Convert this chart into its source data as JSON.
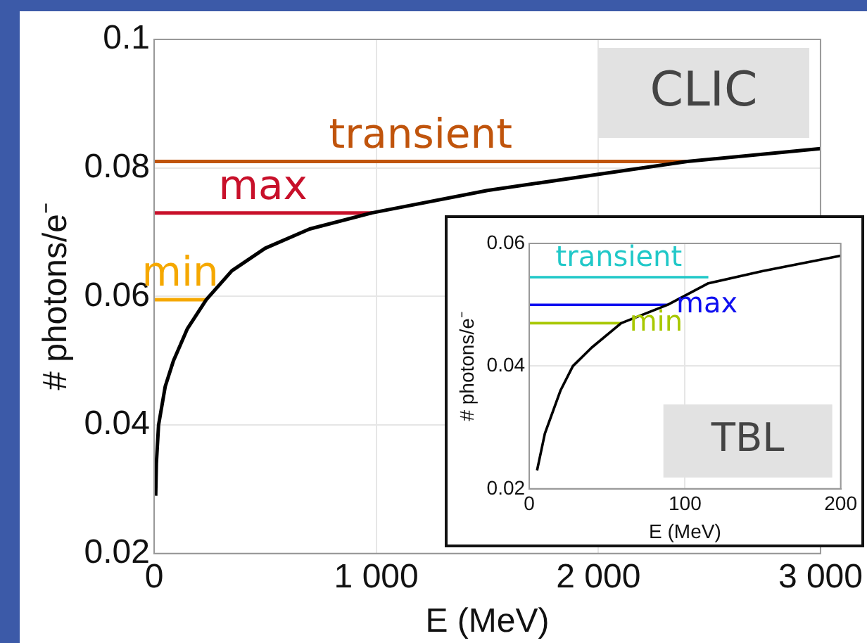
{
  "chart_data": [
    {
      "type": "line",
      "xlabel": "E (MeV)",
      "ylabel": "# photons/e⁻",
      "xlim": [
        0,
        3000
      ],
      "ylim": [
        0.02,
        0.1
      ],
      "xticks": [
        0,
        {
          "value": 1000,
          "label": "1 000"
        },
        {
          "value": 2000,
          "label": "2 000"
        },
        {
          "value": 3000,
          "label": "3 000"
        }
      ],
      "yticks": [
        0.02,
        0.04,
        0.06,
        0.08,
        0.1
      ],
      "grid": true,
      "legend": false,
      "marker": "none",
      "line_style": "solid",
      "annotations": [
        "CLIC"
      ],
      "series": [
        {
          "color": "#000000",
          "x": [
            7,
            10,
            20,
            50,
            87,
            150,
            235,
            350,
            500,
            700,
            980,
            1500,
            2000,
            2400,
            3000
          ],
          "values": [
            0.029,
            0.034,
            0.04,
            0.046,
            0.05,
            0.055,
            0.0595,
            0.064,
            0.0675,
            0.0705,
            0.073,
            0.0765,
            0.079,
            0.081,
            0.083
          ]
        },
        {
          "name": "transient",
          "color": "#c0540c",
          "x": [
            0,
            2400
          ],
          "values": [
            0.081,
            0.081
          ]
        },
        {
          "name": "max",
          "color": "#c8102a",
          "x": [
            0,
            980
          ],
          "values": [
            0.073,
            0.073
          ]
        },
        {
          "name": "min",
          "color": "#f5a800",
          "x": [
            0,
            235
          ],
          "values": [
            0.0595,
            0.0595
          ]
        }
      ]
    },
    {
      "type": "line",
      "xlabel": "E (MeV)",
      "ylabel": "# photons/e⁻",
      "xlim": [
        0,
        200
      ],
      "ylim": [
        0.02,
        0.06
      ],
      "xticks": [
        0,
        100,
        200
      ],
      "yticks": [
        0.02,
        0.04,
        0.06
      ],
      "grid": true,
      "legend": false,
      "marker": "none",
      "line_style": "solid",
      "annotations": [
        "TBL"
      ],
      "series": [
        {
          "color": "#000000",
          "x": [
            5,
            10,
            20,
            28,
            40,
            59,
            89,
            115,
            150,
            200
          ],
          "values": [
            0.023,
            0.029,
            0.036,
            0.04,
            0.043,
            0.047,
            0.05,
            0.0535,
            0.0555,
            0.058
          ]
        },
        {
          "name": "transient",
          "color": "#20c8c8",
          "x": [
            0,
            115
          ],
          "values": [
            0.0545,
            0.0545
          ]
        },
        {
          "name": "max",
          "color": "#1010f0",
          "x": [
            0,
            89
          ],
          "values": [
            0.05,
            0.05
          ]
        },
        {
          "name": "min",
          "color": "#a8c800",
          "x": [
            0,
            59
          ],
          "values": [
            0.047,
            0.047
          ]
        }
      ]
    }
  ]
}
